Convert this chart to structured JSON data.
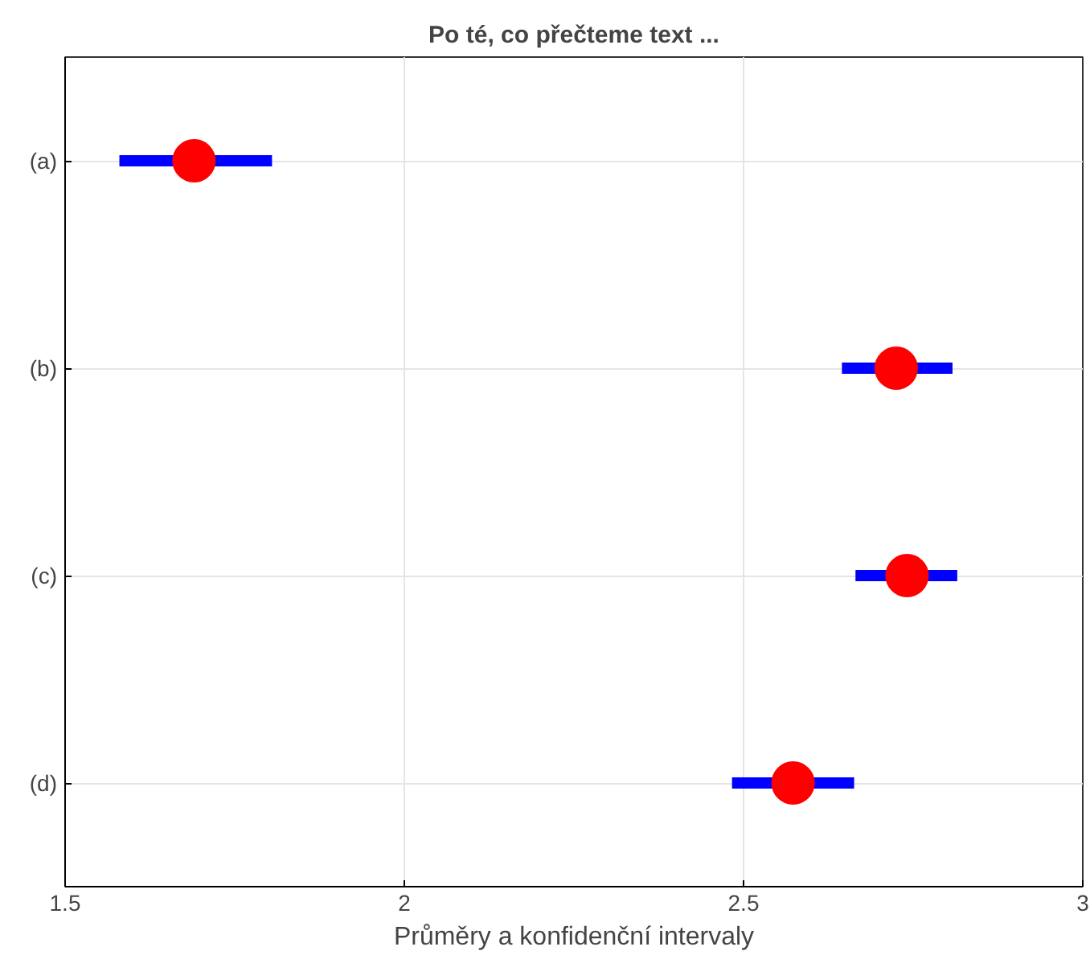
{
  "chart_data": {
    "type": "scatter",
    "orientation": "horizontal",
    "title": "Po té, co přečteme text ...",
    "xlabel": "Průměry a konfidenční intervaly",
    "categories": [
      "(a)",
      "(b)",
      "(c)",
      "(d)"
    ],
    "series": [
      {
        "color": "#ff0000",
        "values": [
          1.69,
          2.725,
          2.741,
          2.573
        ],
        "errors": [
          [
            1.58,
            1.805
          ],
          [
            2.645,
            2.808
          ],
          [
            2.665,
            2.815
          ],
          [
            2.483,
            2.663
          ]
        ]
      }
    ],
    "xlim": [
      1.5,
      3
    ],
    "xticks": [
      1.5,
      2,
      2.5,
      3
    ],
    "grid": true,
    "marker": "circle"
  }
}
